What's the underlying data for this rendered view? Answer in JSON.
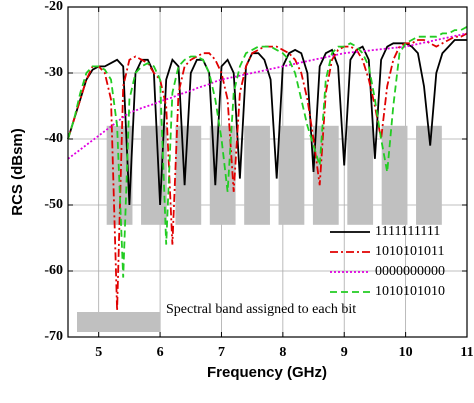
{
  "chart_data": {
    "type": "line",
    "xlabel": "Frequency (GHz)",
    "ylabel": "RCS (dBsm)",
    "xlim": [
      4.5,
      11
    ],
    "xticks": [
      5,
      6,
      7,
      8,
      9,
      10,
      11
    ],
    "ylim": [
      -70,
      -20
    ],
    "yticks": [
      -70,
      -60,
      -50,
      -40,
      -30,
      -20
    ],
    "grid": true,
    "legend": "lower right",
    "band_label": "Spectral band assigned to each bit",
    "band_color": "#c0c0c0",
    "band_ylim": [
      -53,
      -38
    ],
    "bands": [
      [
        5.13,
        5.55
      ],
      [
        5.69,
        6.11
      ],
      [
        6.25,
        6.67
      ],
      [
        6.81,
        7.23
      ],
      [
        7.37,
        7.79
      ],
      [
        7.93,
        8.35
      ],
      [
        8.49,
        8.91
      ],
      [
        9.05,
        9.47
      ],
      [
        9.61,
        10.03
      ],
      [
        10.17,
        10.59
      ]
    ],
    "x": [
      4.5,
      4.6,
      4.7,
      4.8,
      4.9,
      5.0,
      5.1,
      5.2,
      5.3,
      5.4,
      5.5,
      5.6,
      5.7,
      5.8,
      5.9,
      6.0,
      6.1,
      6.2,
      6.3,
      6.4,
      6.5,
      6.6,
      6.7,
      6.8,
      6.9,
      7.0,
      7.1,
      7.2,
      7.3,
      7.4,
      7.5,
      7.6,
      7.7,
      7.8,
      7.9,
      8.0,
      8.1,
      8.2,
      8.3,
      8.4,
      8.5,
      8.6,
      8.7,
      8.8,
      8.9,
      9.0,
      9.1,
      9.2,
      9.3,
      9.4,
      9.5,
      9.6,
      9.7,
      9.8,
      9.9,
      10.0,
      10.1,
      10.2,
      10.3,
      10.4,
      10.5,
      10.6,
      10.7,
      10.8,
      10.9,
      11.0
    ],
    "series": [
      {
        "name": "1111111111",
        "color": "#000000",
        "dash": "none",
        "values": [
          -40,
          -37,
          -34,
          -31,
          -29.5,
          -29,
          -29,
          -28.5,
          -28,
          -29,
          -50,
          -30,
          -28,
          -28,
          -30,
          -50,
          -31,
          -28,
          -29,
          -47,
          -30,
          -28,
          -28,
          -30,
          -47,
          -29,
          -28,
          -30,
          -46,
          -29,
          -27,
          -27,
          -28,
          -31,
          -46,
          -29,
          -27,
          -26.5,
          -27,
          -30,
          -45,
          -29,
          -27,
          -26.5,
          -29,
          -44,
          -28,
          -26.5,
          -26,
          -28,
          -43,
          -28,
          -26,
          -25.5,
          -25.5,
          -25.5,
          -26,
          -27,
          -32,
          -41,
          -30,
          -27,
          -26,
          -25,
          -25,
          -25
        ]
      },
      {
        "name": "1010101011",
        "color": "#e00000",
        "dash": "8 3 2 3",
        "values": [
          -40,
          -37,
          -34,
          -31,
          -29,
          -29,
          -30,
          -34,
          -66,
          -32,
          -28,
          -27.5,
          -28,
          -28.5,
          -30,
          -31,
          -35,
          -56,
          -33,
          -29,
          -28,
          -27.5,
          -27,
          -27,
          -28,
          -30,
          -34,
          -48,
          -33,
          -29,
          -27,
          -26.5,
          -26,
          -26,
          -26,
          -26.5,
          -27,
          -28,
          -30,
          -34,
          -40,
          -47,
          -33,
          -28,
          -26.5,
          -26,
          -26,
          -26.5,
          -28,
          -31,
          -35,
          -40,
          -32,
          -28,
          -26,
          -25.5,
          -25.5,
          -25,
          -25,
          -25.5,
          -26,
          -25.5,
          -25,
          -24.5,
          -24.5,
          -24
        ]
      },
      {
        "name": "0000000000",
        "color": "#e000e0",
        "dash": "2 2",
        "values": [
          -43,
          -42.3,
          -41.6,
          -40.9,
          -40.2,
          -39.5,
          -38.8,
          -38.1,
          -37.4,
          -36.7,
          -36,
          -35.7,
          -35.3,
          -35,
          -34.7,
          -34.3,
          -34,
          -33.7,
          -33.3,
          -33,
          -32.7,
          -32.3,
          -32,
          -31.7,
          -31.3,
          -31,
          -30.8,
          -30.6,
          -30.4,
          -30.2,
          -30,
          -29.8,
          -29.6,
          -29.4,
          -29.2,
          -29,
          -28.8,
          -28.6,
          -28.4,
          -28.2,
          -28,
          -27.8,
          -27.6,
          -27.4,
          -27.2,
          -27,
          -26.9,
          -26.8,
          -26.7,
          -26.6,
          -26.5,
          -26.4,
          -26.3,
          -26.2,
          -26.1,
          -26,
          -25.8,
          -25.6,
          -25.4,
          -25.2,
          -25,
          -24.8,
          -24.6,
          -24.4,
          -24.2,
          -24
        ]
      },
      {
        "name": "1010101010",
        "color": "#22cc22",
        "dash": "7 4",
        "values": [
          -40,
          -37,
          -33,
          -30,
          -29,
          -29,
          -29.5,
          -31,
          -38,
          -61,
          -34,
          -30,
          -29,
          -28.5,
          -29,
          -31,
          -56,
          -33,
          -29,
          -28,
          -27.5,
          -27.5,
          -28,
          -30,
          -34,
          -40,
          -48,
          -33,
          -29,
          -27,
          -26.5,
          -26,
          -26,
          -26,
          -26.5,
          -27,
          -28,
          -30,
          -34,
          -38,
          -41,
          -44,
          -31,
          -27,
          -26,
          -26,
          -25.5,
          -26,
          -27,
          -29,
          -34,
          -40,
          -45,
          -35,
          -27,
          -25.5,
          -25,
          -24.5,
          -24.5,
          -24.5,
          -24.5,
          -24,
          -24,
          -23.5,
          -23.5,
          -23
        ]
      }
    ]
  }
}
